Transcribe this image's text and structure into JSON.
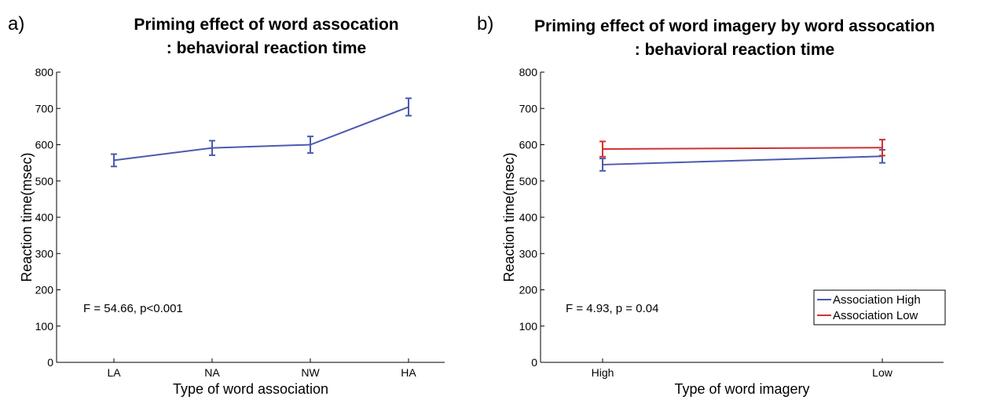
{
  "chart_data": [
    {
      "type": "line",
      "panel_label": "a)",
      "title": [
        "Priming effect of word assocation",
        ": behavioral reaction time"
      ],
      "xlabel": "Type of word association",
      "ylabel": "Reaction time(msec)",
      "ylim": [
        0,
        800
      ],
      "yticks": [
        0,
        100,
        200,
        300,
        400,
        500,
        600,
        700,
        800
      ],
      "categories": [
        "LA",
        "NA",
        "NW",
        "HA"
      ],
      "series": [
        {
          "values": [
            557,
            591,
            600,
            704
          ],
          "errors": [
            17,
            20,
            23,
            24
          ],
          "color": "#4a5ab0"
        }
      ],
      "annotation": "F = 54.66, p<0.001",
      "legend": null
    },
    {
      "type": "line",
      "panel_label": "b)",
      "title": [
        "Priming effect of word imagery by word assocation",
        ": behavioral reaction time"
      ],
      "xlabel": "Type of word imagery",
      "ylabel": "Reaction time(msec)",
      "ylim": [
        0,
        800
      ],
      "yticks": [
        0,
        100,
        200,
        300,
        400,
        500,
        600,
        700,
        800
      ],
      "categories": [
        "High",
        "Low"
      ],
      "series": [
        {
          "name": "Association High",
          "values": [
            545,
            568
          ],
          "errors": [
            17,
            18
          ],
          "color": "#4a5ab0"
        },
        {
          "name": "Association Low",
          "values": [
            588,
            592
          ],
          "errors": [
            21,
            22
          ],
          "color": "#d23030"
        }
      ],
      "annotation": "F = 4.93, p = 0.04",
      "legend": "bottom-right"
    }
  ]
}
